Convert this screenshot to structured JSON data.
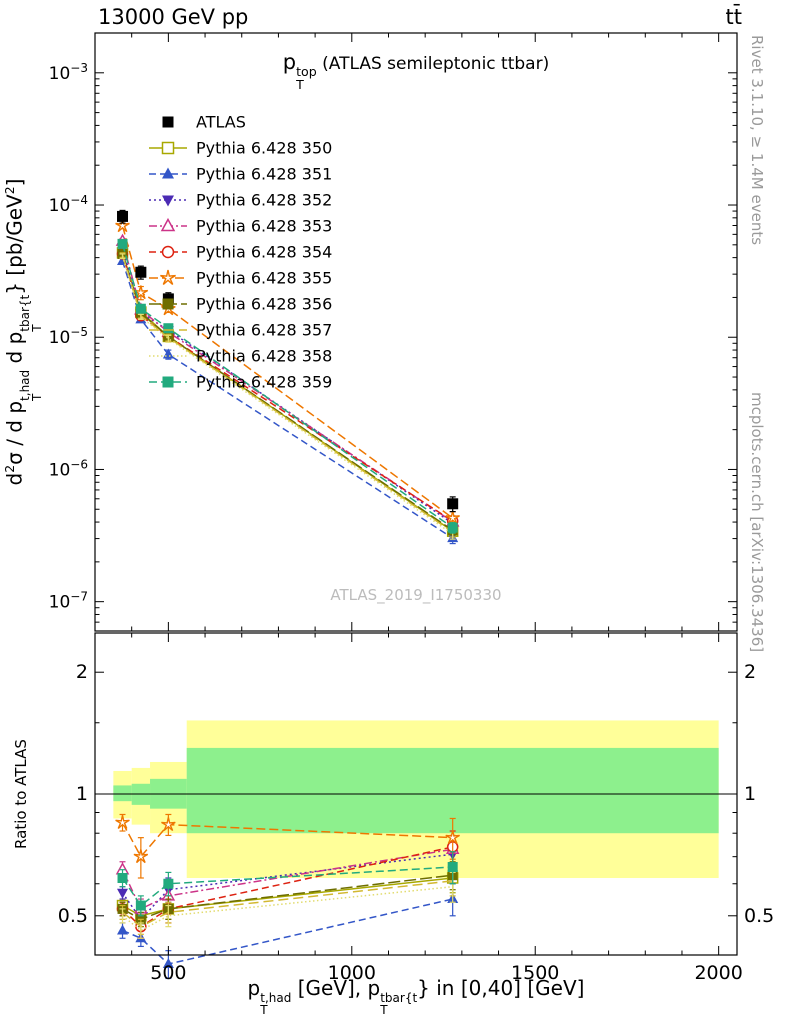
{
  "header": {
    "left": "13000 GeV pp",
    "right": "tt̄"
  },
  "side_notes": {
    "top": "Rivet 3.1.10, ≥ 1.4M events",
    "bottom": "mcplots.cern.ch [arXiv:1306.3436]"
  },
  "watermark": "ATLAS_2019_I1750330",
  "ratio_label": "Ratio to ATLAS",
  "plot_title_rich": [
    {
      "t": "p"
    },
    {
      "ss": {
        "sup": "top",
        "sub": "T"
      }
    },
    {
      "t": " (ATLAS semileptonic ttbar)",
      "c": "small"
    }
  ],
  "y_label_rich": [
    {
      "t": "d"
    },
    {
      "sup": "2"
    },
    {
      "t": "σ / d p"
    },
    {
      "ss": {
        "sup": "t,had",
        "sub": "T"
      }
    },
    {
      "t": " d p"
    },
    {
      "ss": {
        "sup": "tbar{t",
        "sub": "T"
      }
    },
    {
      "t": "} [pb/GeV"
    },
    {
      "sup": "2"
    },
    {
      "t": "]"
    }
  ],
  "x_label_rich": [
    {
      "t": "p"
    },
    {
      "ss": {
        "sup": "t,had",
        "sub": "T"
      }
    },
    {
      "t": " [GeV], p"
    },
    {
      "ss": {
        "sup": "tbar{t",
        "sub": "T"
      }
    },
    {
      "t": "} in [0,40] [GeV]"
    }
  ],
  "chart_data": {
    "type": "line",
    "x": [
      375,
      425,
      500,
      1275
    ],
    "x_axis": {
      "min": 300,
      "max": 2050,
      "ticks": [
        500,
        1000,
        1500,
        2000
      ],
      "minor_step": 100
    },
    "y_axis_main": {
      "scale": "log",
      "min": 6e-08,
      "max": 0.002,
      "tick_exponents": [
        -3,
        -4,
        -5,
        -6,
        -7
      ]
    },
    "y_axis_ratio": {
      "scale": "log",
      "min": 0.4,
      "max": 2.5,
      "ticks": [
        0.5,
        1,
        2
      ],
      "minor_ticks": [
        0.6,
        0.7,
        0.8,
        0.9,
        1.5
      ]
    },
    "band_colors": {
      "yellow": "#ffff99",
      "green": "#8df08d"
    },
    "ratio_bands": [
      {
        "x0": 350,
        "x1": 400,
        "yellow": [
          0.87,
          1.14
        ],
        "green": [
          0.96,
          1.05
        ]
      },
      {
        "x0": 400,
        "x1": 450,
        "yellow": [
          0.84,
          1.16
        ],
        "green": [
          0.94,
          1.06
        ]
      },
      {
        "x0": 450,
        "x1": 550,
        "yellow": [
          0.8,
          1.2
        ],
        "green": [
          0.92,
          1.09
        ]
      },
      {
        "x0": 550,
        "x1": 2000,
        "yellow": [
          0.62,
          1.52
        ],
        "green": [
          0.8,
          1.3
        ]
      }
    ],
    "atlas": {
      "label": "ATLAS",
      "color": "#000000",
      "marker": "square-filled",
      "values": [
        8.2e-05,
        3.1e-05,
        1.95e-05,
        5.5e-07
      ],
      "errors": [
        9e-06,
        3.5e-06,
        2.2e-06,
        7e-08
      ]
    },
    "series": [
      {
        "label": "Pythia 6.428 350",
        "color": "#a8a800",
        "marker": "square-open",
        "dash": "",
        "ratios": [
          0.53,
          0.5,
          0.52,
          0.62
        ],
        "ratio_err": [
          0.02,
          0.02,
          0.03,
          0.05
        ]
      },
      {
        "label": "Pythia 6.428 351",
        "color": "#3356c8",
        "marker": "triangle-up-filled",
        "dash": "7,4",
        "ratios": [
          0.46,
          0.44,
          0.38,
          0.55
        ],
        "ratio_err": [
          0.02,
          0.02,
          0.03,
          0.05
        ]
      },
      {
        "label": "Pythia 6.428 352",
        "color": "#4b2bb4",
        "marker": "triangle-down-filled",
        "dash": "2,3",
        "ratios": [
          0.57,
          0.49,
          0.58,
          0.71
        ],
        "ratio_err": [
          0.02,
          0.03,
          0.04,
          0.06
        ]
      },
      {
        "label": "Pythia 6.428 353",
        "color": "#cc3388",
        "marker": "triangle-up-open",
        "dash": "8,3,2,3",
        "ratios": [
          0.65,
          0.52,
          0.56,
          0.73
        ],
        "ratio_err": [
          0.03,
          0.03,
          0.04,
          0.06
        ]
      },
      {
        "label": "Pythia 6.428 354",
        "color": "#dd2211",
        "marker": "circle-open",
        "dash": "7,4",
        "ratios": [
          0.52,
          0.47,
          0.52,
          0.74
        ],
        "ratio_err": [
          0.02,
          0.03,
          0.04,
          0.07
        ]
      },
      {
        "label": "Pythia 6.428 355",
        "color": "#ee7700",
        "marker": "star-open",
        "dash": "9,4",
        "ratios": [
          0.85,
          0.7,
          0.84,
          0.78
        ],
        "ratio_err": [
          0.04,
          0.08,
          0.05,
          0.09
        ]
      },
      {
        "label": "Pythia 6.428 356",
        "color": "#6e6e00",
        "marker": "square-filled",
        "dash": "12,4",
        "ratios": [
          0.52,
          0.49,
          0.52,
          0.63
        ],
        "ratio_err": [
          0.02,
          0.02,
          0.03,
          0.05
        ]
      },
      {
        "label": "Pythia 6.428 357",
        "color": "#d2b830",
        "marker": "none",
        "dash": "10,5",
        "ratios": [
          0.51,
          0.47,
          0.51,
          0.61
        ],
        "ratio_err": [
          0.02,
          0.02,
          0.03,
          0.05
        ]
      },
      {
        "label": "Pythia 6.428 358",
        "color": "#e2dc70",
        "marker": "none",
        "dash": "1.5,2.5",
        "ratios": [
          0.5,
          0.46,
          0.5,
          0.59
        ],
        "ratio_err": [
          0.02,
          0.02,
          0.03,
          0.05
        ]
      },
      {
        "label": "Pythia 6.428 359",
        "color": "#22aa7e",
        "marker": "square-filled",
        "dash": "8,4",
        "ratios": [
          0.62,
          0.53,
          0.6,
          0.66
        ],
        "ratio_err": [
          0.03,
          0.03,
          0.04,
          0.06
        ]
      }
    ]
  }
}
